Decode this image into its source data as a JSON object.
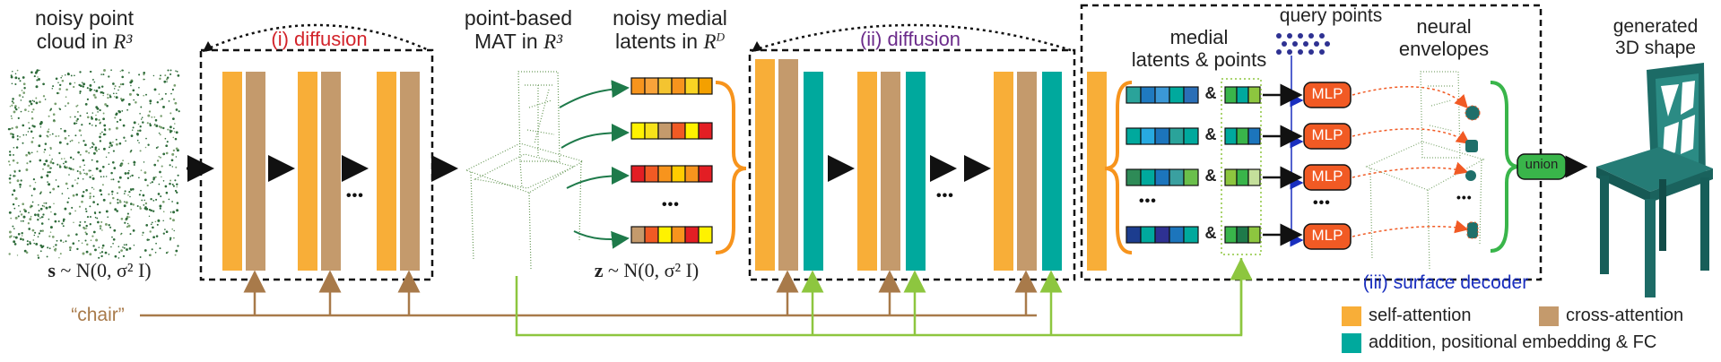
{
  "labels": {
    "noisy_point_cloud": "noisy point\ncloud in",
    "noisy_point_cloud_space": "R³",
    "diffusion1": "(i) diffusion",
    "point_mat": "point-based\nMAT in",
    "point_mat_space": "R³",
    "noisy_latents": "noisy medial\nlatents in",
    "noisy_latents_space": "R",
    "noisy_latents_sup": "D",
    "diffusion2": "(ii) diffusion",
    "query_points": "query points",
    "medial_latents": "medial\nlatents & points",
    "neural_envelopes": "neural\nenvelopes",
    "generated_shape": "generated\n3D shape",
    "surface_decoder": "(iii) surface decoder",
    "prompt": "“chair”",
    "mlp": "MLP",
    "union": "union",
    "ampersand": "&",
    "ellipsis": "•••",
    "s_formula_bold": "s",
    "s_formula_rest": " ~ N(0, σ² I)",
    "z_formula_bold": "z",
    "z_formula_rest": " ~ N(0, σ² I)"
  },
  "legend": [
    {
      "label": "self-attention",
      "color": "#f8ae38"
    },
    {
      "label": "cross-attention",
      "color": "#c49a6c"
    },
    {
      "label": "addition, positional embedding & FC",
      "color": "#00a99d"
    }
  ],
  "colors": {
    "self_attention": "#f8ae38",
    "cross_attention": "#c49a6c",
    "positional_fc": "#00a99d",
    "diffusion1_text": "#d2232a",
    "diffusion2_text": "#6b2b8a",
    "decoder_text": "#1a2fbf",
    "prompt_line": "#a87a4a",
    "green_line": "#8dc63f",
    "mlp_fill": "#f15a24",
    "union_fill": "#39b54a",
    "shape": "#1f6f6a"
  }
}
